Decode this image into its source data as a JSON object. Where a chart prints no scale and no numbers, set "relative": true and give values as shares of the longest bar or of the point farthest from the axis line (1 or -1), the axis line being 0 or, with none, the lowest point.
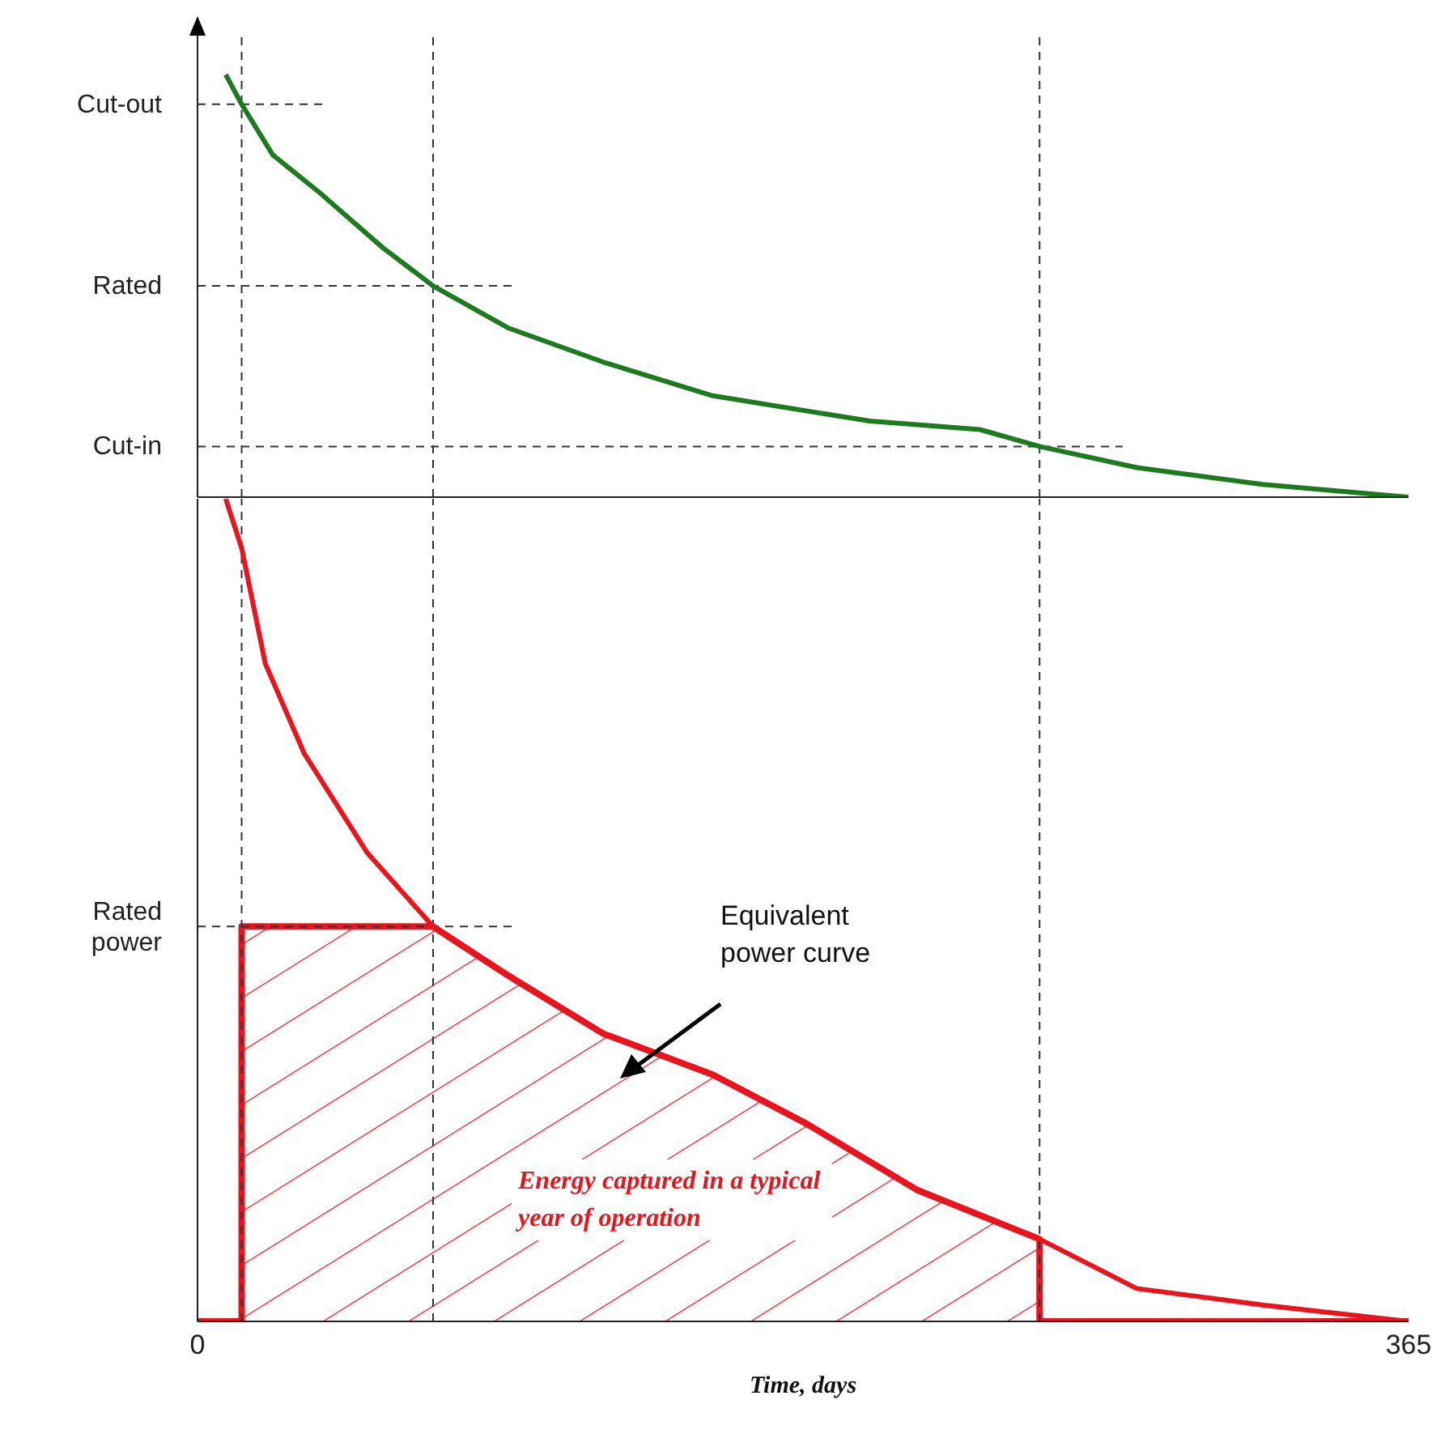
{
  "chart_data": [
    {
      "type": "line",
      "relative": true,
      "xlim": [
        0,
        365
      ],
      "tick_labels": false,
      "series": [
        {
          "color": "#1e7a1e",
          "x": [
            8.5,
            13.3,
            22.7,
            36.9,
            55.9,
            71.0,
            93.8,
            122.2,
            155.3,
            202.7,
            235.8,
            253.8,
            283.1,
            321.0,
            365
          ],
          "values": [
            1.0,
            0.93,
            0.81,
            0.72,
            0.59,
            0.5,
            0.4,
            0.32,
            0.24,
            0.18,
            0.16,
            0.12,
            0.07,
            0.03,
            0
          ]
        }
      ],
      "ref_lines": [
        {
          "axis": "y",
          "value": 0.93,
          "label": "Cut-out",
          "line_style": "dashed"
        },
        {
          "axis": "y",
          "value": 0.5,
          "label": "Rated",
          "line_style": "dashed"
        },
        {
          "axis": "y",
          "value": 0.12,
          "label": "Cut-in",
          "line_style": "dashed"
        },
        {
          "axis": "x",
          "value": 13.3,
          "line_style": "dashed"
        },
        {
          "axis": "x",
          "value": 71.0,
          "line_style": "dashed"
        },
        {
          "axis": "x",
          "value": 253.8,
          "line_style": "dashed"
        }
      ]
    },
    {
      "type": "line",
      "relative": true,
      "xlabel": "Time, days",
      "xlim": [
        0,
        365
      ],
      "xticks": [
        0,
        365
      ],
      "tick_labels": "x",
      "series": [
        {
          "color": "#e8141e",
          "x": [
            8.5,
            13.3,
            20.4,
            32.2,
            51.1,
            71.0,
            93.8,
            122.2,
            155.3,
            183.7,
            216.8,
            253.8,
            283.1,
            321.0,
            365
          ],
          "values": [
            1.0,
            0.94,
            0.8,
            0.69,
            0.57,
            0.48,
            0.42,
            0.35,
            0.3,
            0.24,
            0.16,
            0.1,
            0.04,
            0.02,
            0
          ]
        },
        {
          "type": "area",
          "color": "#e8141e",
          "x": [
            0,
            13.3,
            13.3,
            71.0,
            93.8,
            122.2,
            155.3,
            183.7,
            216.8,
            253.8,
            253.8,
            365
          ],
          "values": [
            0,
            0,
            0.48,
            0.48,
            0.42,
            0.35,
            0.3,
            0.24,
            0.16,
            0.1,
            0,
            0
          ]
        }
      ],
      "ref_lines": [
        {
          "axis": "y",
          "value": 0.48,
          "label": "Rated power",
          "line_style": "dashed"
        },
        {
          "axis": "x",
          "value": 13.3,
          "line_style": "dashed"
        },
        {
          "axis": "x",
          "value": 71.0,
          "line_style": "dashed"
        },
        {
          "axis": "x",
          "value": 253.8,
          "line_style": "dashed"
        }
      ],
      "annotations": [
        "Equivalent power curve",
        "Energy captured in a typical year of operation"
      ]
    }
  ]
}
